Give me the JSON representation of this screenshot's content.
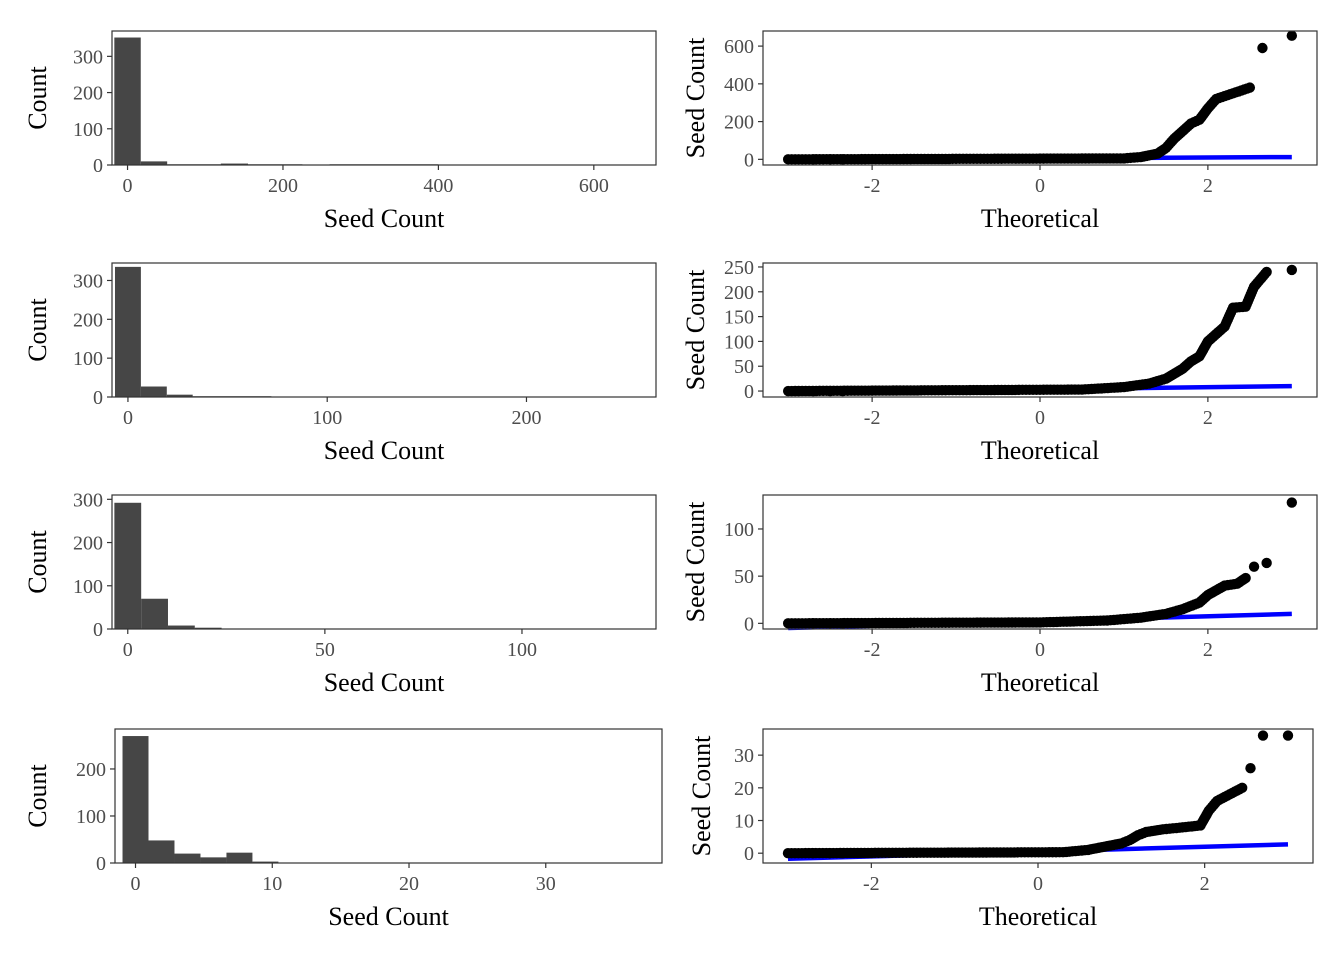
{
  "colors": {
    "bar": "#464646",
    "point": "#000000",
    "ref_line": "#0000ff",
    "frame": "#333333",
    "tick_text": "#4d4d4d"
  },
  "chart_data": [
    {
      "type": "bar",
      "xlabel": "Seed Count",
      "ylabel": "Count",
      "xlim": [
        -20,
        680
      ],
      "ylim": [
        0,
        370
      ],
      "xticks": [
        0,
        200,
        400,
        600
      ],
      "yticks": [
        0,
        100,
        200,
        300
      ],
      "grid": false,
      "bins": [
        {
          "x0": -17,
          "x1": 17,
          "count": 352
        },
        {
          "x0": 17,
          "x1": 51,
          "count": 10
        },
        {
          "x0": 51,
          "x1": 120,
          "count": 2
        },
        {
          "x0": 120,
          "x1": 155,
          "count": 4
        },
        {
          "x0": 155,
          "x1": 225,
          "count": 2
        },
        {
          "x0": 260,
          "x1": 400,
          "count": 2
        },
        {
          "x0": 574,
          "x1": 609,
          "count": 1
        },
        {
          "x0": 644,
          "x1": 679,
          "count": 1
        }
      ]
    },
    {
      "type": "scatter",
      "xlabel": "Theoretical",
      "ylabel": "Seed Count",
      "xlim": [
        -3.3,
        3.3
      ],
      "ylim": [
        -30,
        680
      ],
      "xticks": [
        -2,
        0,
        2
      ],
      "yticks": [
        0,
        200,
        400,
        600
      ],
      "grid": false,
      "qq_curve": [
        [
          -3.0,
          0
        ],
        [
          1.0,
          5
        ],
        [
          1.2,
          12
        ],
        [
          1.4,
          30
        ],
        [
          1.5,
          60
        ],
        [
          1.6,
          110
        ],
        [
          1.7,
          150
        ],
        [
          1.8,
          190
        ],
        [
          1.9,
          210
        ],
        [
          2.0,
          270
        ],
        [
          2.1,
          320
        ],
        [
          2.3,
          350
        ],
        [
          2.5,
          380
        ]
      ],
      "outliers": [
        [
          2.65,
          590
        ],
        [
          3.0,
          655
        ]
      ],
      "ref_line": {
        "x": [
          -3.0,
          3.0
        ],
        "y": [
          -2,
          12
        ]
      }
    },
    {
      "type": "bar",
      "xlabel": "Seed Count",
      "ylabel": "Count",
      "xlim": [
        -8,
        265
      ],
      "ylim": [
        0,
        345
      ],
      "xticks": [
        0,
        100,
        200
      ],
      "yticks": [
        0,
        100,
        200,
        300
      ],
      "grid": false,
      "bins": [
        {
          "x0": -6.5,
          "x1": 6.5,
          "count": 335
        },
        {
          "x0": 6.5,
          "x1": 19.5,
          "count": 27
        },
        {
          "x0": 19.5,
          "x1": 32.5,
          "count": 6
        },
        {
          "x0": 32.5,
          "x1": 72,
          "count": 2
        },
        {
          "x0": 72,
          "x1": 98,
          "count": 1
        },
        {
          "x0": 111,
          "x1": 137,
          "count": 1
        },
        {
          "x0": 163,
          "x1": 176,
          "count": 1
        },
        {
          "x0": 202,
          "x1": 215,
          "count": 1
        },
        {
          "x0": 241,
          "x1": 254,
          "count": 1
        }
      ]
    },
    {
      "type": "scatter",
      "xlabel": "Theoretical",
      "ylabel": "Seed Count",
      "xlim": [
        -3.3,
        3.3
      ],
      "ylim": [
        -12,
        258
      ],
      "xticks": [
        -2,
        0,
        2
      ],
      "yticks": [
        0,
        50,
        100,
        150,
        200,
        250
      ],
      "grid": false,
      "qq_curve": [
        [
          -3.0,
          0
        ],
        [
          0.5,
          3
        ],
        [
          1.0,
          8
        ],
        [
          1.3,
          15
        ],
        [
          1.5,
          25
        ],
        [
          1.7,
          45
        ],
        [
          1.8,
          60
        ],
        [
          1.9,
          70
        ],
        [
          2.0,
          100
        ],
        [
          2.1,
          115
        ],
        [
          2.2,
          130
        ],
        [
          2.3,
          168
        ],
        [
          2.45,
          170
        ],
        [
          2.55,
          210
        ],
        [
          2.7,
          240
        ]
      ],
      "outliers": [
        [
          3.0,
          244
        ]
      ],
      "ref_line": {
        "x": [
          -3.0,
          3.0
        ],
        "y": [
          -3,
          10
        ]
      }
    },
    {
      "type": "bar",
      "xlabel": "Seed Count",
      "ylabel": "Count",
      "xlim": [
        -4,
        134
      ],
      "ylim": [
        0,
        310
      ],
      "xticks": [
        0,
        50,
        100
      ],
      "yticks": [
        0,
        100,
        200,
        300
      ],
      "grid": false,
      "bins": [
        {
          "x0": -3.4,
          "x1": 3.4,
          "count": 292
        },
        {
          "x0": 3.4,
          "x1": 10.2,
          "count": 70
        },
        {
          "x0": 10.2,
          "x1": 17,
          "count": 8
        },
        {
          "x0": 17,
          "x1": 23.8,
          "count": 3
        },
        {
          "x0": 23.8,
          "x1": 30.6,
          "count": 1
        },
        {
          "x0": 30.6,
          "x1": 44.2,
          "count": 1
        },
        {
          "x0": 44.2,
          "x1": 51,
          "count": 1
        },
        {
          "x0": 57.8,
          "x1": 64.6,
          "count": 1
        },
        {
          "x0": 125,
          "x1": 131.8,
          "count": 1
        }
      ]
    },
    {
      "type": "scatter",
      "xlabel": "Theoretical",
      "ylabel": "Seed Count",
      "xlim": [
        -3.3,
        3.3
      ],
      "ylim": [
        -6,
        136
      ],
      "xticks": [
        -2,
        0,
        2
      ],
      "yticks": [
        0,
        50,
        100
      ],
      "grid": false,
      "qq_curve": [
        [
          -3.0,
          0
        ],
        [
          0.0,
          1
        ],
        [
          0.8,
          3
        ],
        [
          1.2,
          6
        ],
        [
          1.5,
          10
        ],
        [
          1.7,
          15
        ],
        [
          1.9,
          22
        ],
        [
          2.0,
          30
        ],
        [
          2.1,
          35
        ],
        [
          2.2,
          40
        ],
        [
          2.35,
          42
        ],
        [
          2.45,
          48
        ]
      ],
      "outliers": [
        [
          2.55,
          60
        ],
        [
          2.7,
          64
        ],
        [
          3.0,
          128
        ]
      ],
      "ref_line": {
        "x": [
          -3.0,
          3.0
        ],
        "y": [
          -5,
          10
        ]
      }
    },
    {
      "type": "bar",
      "xlabel": "Seed Count",
      "ylabel": "Count",
      "xlim": [
        -1.5,
        38.5
      ],
      "ylim": [
        0,
        285
      ],
      "xticks": [
        0,
        10,
        20,
        30
      ],
      "yticks": [
        0,
        100,
        200
      ],
      "grid": false,
      "bins": [
        {
          "x0": -0.95,
          "x1": 0.95,
          "count": 270
        },
        {
          "x0": 0.95,
          "x1": 2.85,
          "count": 48
        },
        {
          "x0": 2.85,
          "x1": 4.75,
          "count": 20
        },
        {
          "x0": 4.75,
          "x1": 6.65,
          "count": 12
        },
        {
          "x0": 6.65,
          "x1": 8.55,
          "count": 22
        },
        {
          "x0": 8.55,
          "x1": 10.45,
          "count": 3
        },
        {
          "x0": 10.45,
          "x1": 16.15,
          "count": 1
        },
        {
          "x0": 18.05,
          "x1": 21.85,
          "count": 1
        },
        {
          "x0": 25.65,
          "x1": 27.55,
          "count": 1
        },
        {
          "x0": 35.15,
          "x1": 37.05,
          "count": 1
        }
      ]
    },
    {
      "type": "scatter",
      "xlabel": "Theoretical",
      "ylabel": "Seed Count",
      "xlim": [
        -3.3,
        3.3
      ],
      "ylim": [
        -3,
        38
      ],
      "xticks": [
        -2,
        0,
        2
      ],
      "yticks": [
        0,
        10,
        20,
        30
      ],
      "grid": false,
      "qq_curve": [
        [
          -3.0,
          0
        ],
        [
          0.3,
          0.3
        ],
        [
          0.6,
          1
        ],
        [
          0.8,
          2
        ],
        [
          1.0,
          3
        ],
        [
          1.1,
          4
        ],
        [
          1.2,
          5.5
        ],
        [
          1.3,
          6.5
        ],
        [
          1.5,
          7.3
        ],
        [
          1.7,
          7.8
        ],
        [
          1.95,
          8.5
        ],
        [
          2.05,
          13
        ],
        [
          2.15,
          16
        ],
        [
          2.3,
          18
        ],
        [
          2.45,
          20
        ]
      ],
      "outliers": [
        [
          2.55,
          26
        ],
        [
          2.7,
          36
        ],
        [
          3.0,
          36
        ]
      ],
      "ref_line": {
        "x": [
          -3.0,
          3.0
        ],
        "y": [
          -1.7,
          2.7
        ]
      }
    }
  ]
}
